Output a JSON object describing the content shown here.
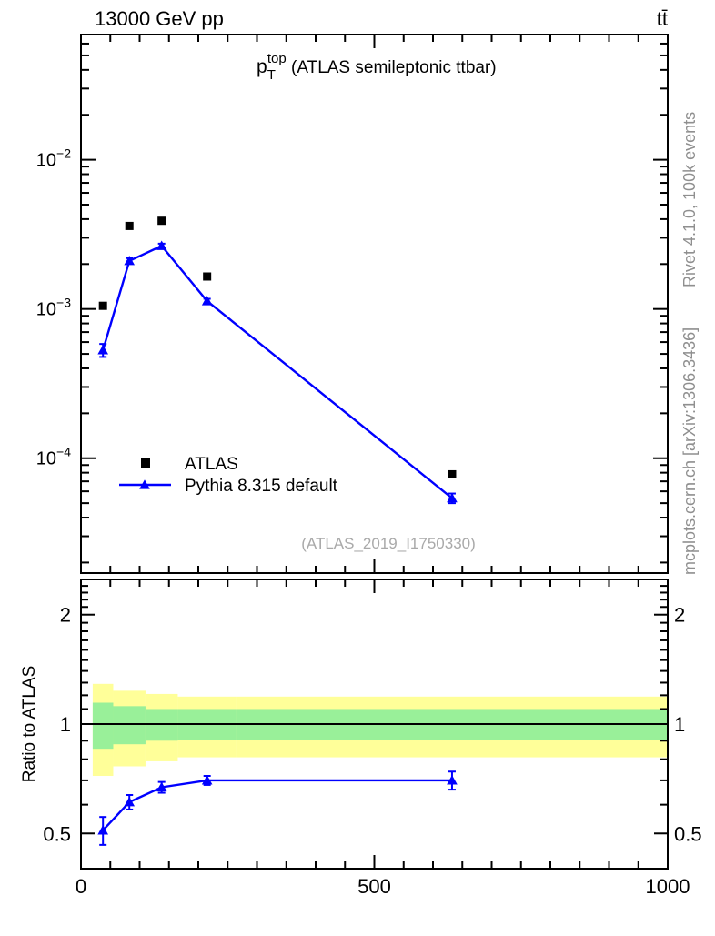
{
  "header": {
    "left": "13000 GeV pp",
    "right": "tt̄"
  },
  "side_notes": {
    "top": "Rivet 4.1.0,  100k events",
    "bottom": "mcplots.cern.ch [arXiv:1306.3436]"
  },
  "watermark": "(ATLAS_2019_I1750330)",
  "colors": {
    "accent": "#0000ff",
    "marker_black": "#000000",
    "band_total": "#ffff99",
    "band_stat": "#99f099",
    "gray_text": "#8f8f8f",
    "watermark_gray": "#a9a9a9"
  },
  "chart_data": {
    "type": "line",
    "title": {
      "base": "p",
      "sub": "T",
      "sup": "top",
      "suffix": " (ATLAS semileptonic ttbar)"
    },
    "xlabel": "",
    "ylabel": "",
    "xlim": [
      0,
      1000
    ],
    "x_major_ticks": [
      0,
      500,
      1000
    ],
    "x_tick_labels": [
      "0",
      "500",
      "1000"
    ],
    "x_minor_step": 50,
    "main_panel": {
      "yscale": "log",
      "ylim": [
        1.7e-05,
        0.069
      ],
      "ytick_exponents": [
        -2,
        -3,
        -4
      ],
      "x": [
        37.5,
        82.5,
        137.5,
        215,
        632.5
      ],
      "bin_edges": [
        20,
        55,
        110,
        165,
        265,
        1000
      ],
      "series": [
        {
          "name": "ATLAS",
          "marker": "square",
          "color": "#000000",
          "values": [
            0.00105,
            0.0036,
            0.0039,
            0.00165,
            7.8e-05
          ]
        },
        {
          "name": "Pythia 8.315 default",
          "marker": "triangle",
          "color": "#0000ff",
          "line": true,
          "values": [
            0.00053,
            0.0021,
            0.00265,
            0.00113,
            5.4e-05
          ],
          "errors": [
            5.3e-05,
            9e-05,
            9e-05,
            4e-05,
            4e-06
          ]
        }
      ]
    },
    "ratio_panel": {
      "ylabel": "Ratio to ATLAS",
      "yscale": "log",
      "ylim": [
        0.4,
        2.5
      ],
      "ytick_values": [
        0.5,
        1,
        2
      ],
      "ytick_labels": [
        "0.5",
        "1",
        "2"
      ],
      "reference_line": 1,
      "values": [
        0.51,
        0.61,
        0.67,
        0.7,
        0.7
      ],
      "errors": [
        0.045,
        0.028,
        0.023,
        0.02,
        0.04
      ],
      "bands": {
        "edges": [
          20,
          55,
          110,
          165,
          265,
          1000
        ],
        "total": [
          [
            0.72,
            1.29
          ],
          [
            0.765,
            1.235
          ],
          [
            0.79,
            1.21
          ],
          [
            0.81,
            1.19
          ],
          [
            0.81,
            1.19
          ]
        ],
        "stat": [
          [
            0.855,
            1.145
          ],
          [
            0.88,
            1.12
          ],
          [
            0.9,
            1.1
          ],
          [
            0.905,
            1.1
          ],
          [
            0.905,
            1.1
          ]
        ]
      }
    },
    "legend": {
      "items": [
        {
          "label": "ATLAS"
        },
        {
          "label": "Pythia 8.315 default"
        }
      ]
    }
  }
}
